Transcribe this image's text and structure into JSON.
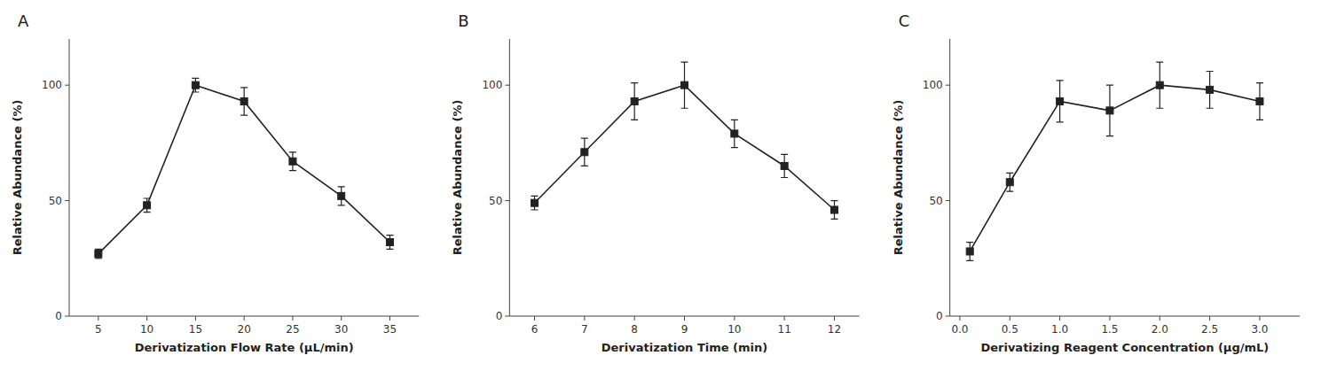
{
  "chart_data": [
    {
      "type": "line",
      "title": "A",
      "x": [
        5,
        10,
        15,
        20,
        25,
        30,
        35
      ],
      "values": [
        27,
        48,
        100,
        93,
        67,
        52,
        32
      ],
      "errors": [
        2,
        3,
        3,
        6,
        4,
        4,
        3
      ],
      "xlabel": "Derivatization Flow Rate (μL/min)",
      "ylabel": "Relative Abundance (%)",
      "xlim": [
        2,
        38
      ],
      "ylim": [
        0,
        120
      ],
      "xticks": [
        5,
        10,
        15,
        20,
        25,
        30,
        35
      ],
      "yticks": [
        0,
        50,
        100
      ],
      "color": "#222222",
      "marker": "square",
      "line_style": "solid",
      "grid": false
    },
    {
      "type": "line",
      "title": "B",
      "x": [
        6,
        7,
        8,
        9,
        10,
        11,
        12
      ],
      "values": [
        49,
        71,
        93,
        100,
        79,
        65,
        46
      ],
      "errors": [
        3,
        6,
        8,
        10,
        6,
        5,
        4
      ],
      "xlabel": "Derivatization Time (min)",
      "ylabel": "Relative Abundance (%)",
      "xlim": [
        5.5,
        12.5
      ],
      "ylim": [
        0,
        120
      ],
      "xticks": [
        6,
        7,
        8,
        9,
        10,
        11,
        12
      ],
      "yticks": [
        0,
        50,
        100
      ],
      "color": "#222222",
      "marker": "square",
      "line_style": "solid",
      "grid": false
    },
    {
      "type": "line",
      "title": "C",
      "x": [
        0.1,
        0.5,
        1.0,
        1.5,
        2.0,
        2.5,
        3.0
      ],
      "values": [
        28,
        58,
        93,
        89,
        100,
        98,
        93
      ],
      "errors": [
        4,
        4,
        9,
        11,
        10,
        8,
        8
      ],
      "xlabel": "Derivatizing Reagent Concentration (μg/mL)",
      "ylabel": "Relative Abundance (%)",
      "xlim": [
        -0.1,
        3.4
      ],
      "ylim": [
        0,
        120
      ],
      "xticks": [
        {
          "value": 0.0,
          "label": "0.0"
        },
        0.5,
        {
          "value": 1.0,
          "label": "1.0"
        },
        1.5,
        {
          "value": 2.0,
          "label": "2.0"
        },
        2.5,
        {
          "value": 3.0,
          "label": "3.0"
        }
      ],
      "yticks": [
        0,
        50,
        100
      ],
      "color": "#222222",
      "marker": "square",
      "line_style": "solid",
      "grid": false
    }
  ]
}
